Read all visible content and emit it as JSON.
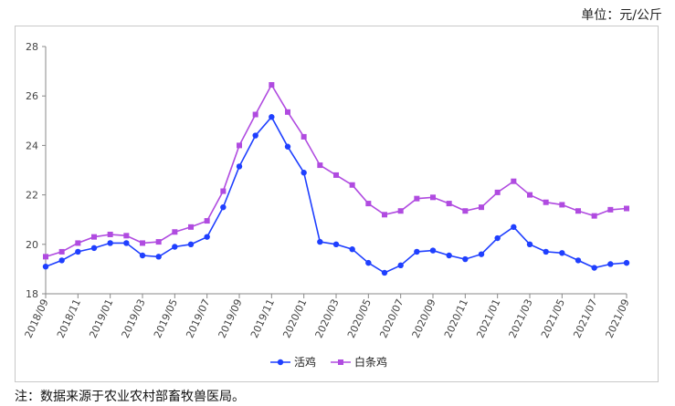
{
  "unit_label": "单位：元/公斤",
  "note": "注：数据来源于农业农村部畜牧兽医局。",
  "chart_data": {
    "type": "line",
    "title": "",
    "xlabel": "",
    "ylabel": "",
    "ylim": [
      18,
      28
    ],
    "yticks": [
      "18",
      "20",
      "22",
      "24",
      "26",
      "28"
    ],
    "x": [
      "2018/09",
      "2018/10",
      "2018/11",
      "2018/12",
      "2019/01",
      "2019/02",
      "2019/03",
      "2019/04",
      "2019/05",
      "2019/06",
      "2019/07",
      "2019/08",
      "2019/09",
      "2019/10",
      "2019/11",
      "2019/12",
      "2020/01",
      "2020/02",
      "2020/03",
      "2020/04",
      "2020/05",
      "2020/06",
      "2020/07",
      "2020/08",
      "2020/09",
      "2020/10",
      "2020/11",
      "2020/12",
      "2021/01",
      "2021/02",
      "2021/03",
      "2021/04",
      "2021/05",
      "2021/06",
      "2021/07",
      "2021/08",
      "2021/09"
    ],
    "xticks": [
      "2018/09",
      "2018/11",
      "2019/01",
      "2019/03",
      "2019/05",
      "2019/07",
      "2019/09",
      "2019/11",
      "2020/01",
      "2020/03",
      "2020/05",
      "2020/07",
      "2020/09",
      "2020/11",
      "2021/01",
      "2021/03",
      "2021/05",
      "2021/07",
      "2021/09"
    ],
    "grid": false,
    "legend_position": "bottom",
    "series": [
      {
        "name": "活鸡",
        "color": "#1f3fff",
        "marker": "circle",
        "values": [
          19.1,
          19.35,
          19.7,
          19.85,
          20.05,
          20.05,
          19.55,
          19.5,
          19.9,
          20.0,
          20.3,
          21.5,
          23.15,
          24.4,
          25.15,
          23.95,
          22.9,
          20.1,
          20.0,
          19.8,
          19.25,
          18.85,
          19.15,
          19.7,
          19.75,
          19.55,
          19.4,
          19.6,
          20.25,
          20.7,
          20.0,
          19.7,
          19.65,
          19.35,
          19.05,
          19.2,
          19.25
        ]
      },
      {
        "name": "白条鸡",
        "color": "#b04be0",
        "marker": "square",
        "values": [
          19.5,
          19.7,
          20.05,
          20.3,
          20.4,
          20.35,
          20.05,
          20.1,
          20.5,
          20.7,
          20.95,
          22.15,
          24.0,
          25.25,
          26.45,
          25.35,
          24.35,
          23.2,
          22.8,
          22.4,
          21.65,
          21.2,
          21.35,
          21.85,
          21.9,
          21.65,
          21.35,
          21.5,
          22.1,
          22.55,
          22.0,
          21.7,
          21.6,
          21.35,
          21.15,
          21.4,
          21.45
        ]
      }
    ]
  }
}
